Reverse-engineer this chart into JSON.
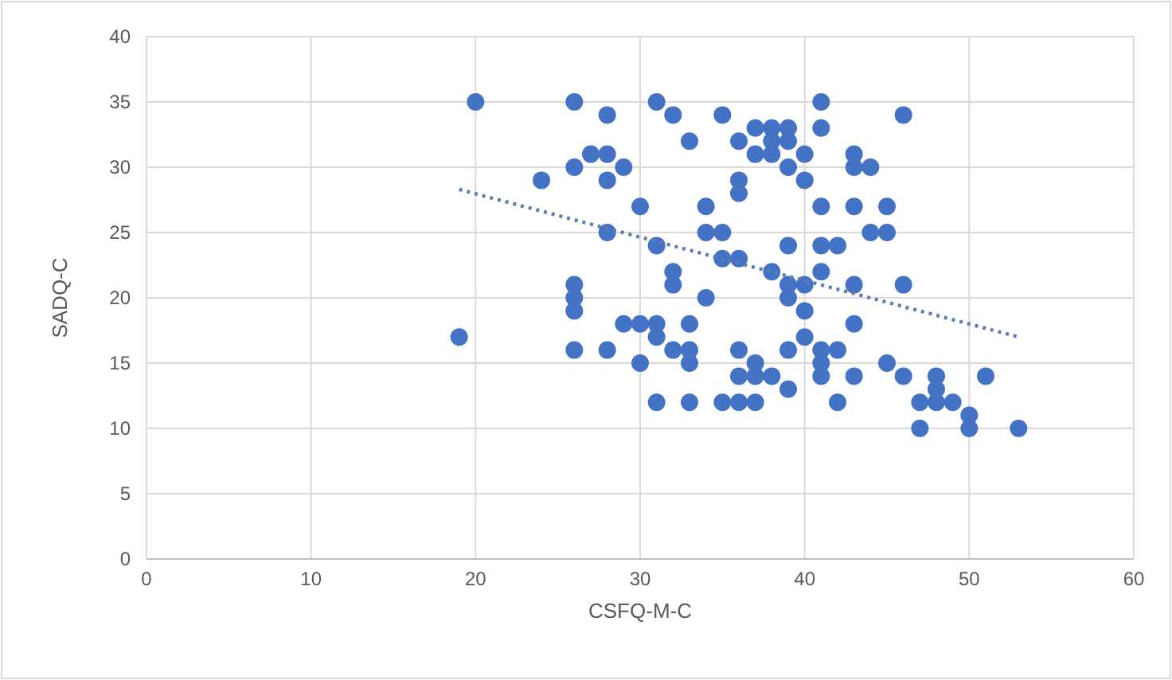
{
  "chart_data": {
    "type": "scatter",
    "xlabel": "CSFQ-M-C",
    "ylabel": "SADQ-C",
    "xlim": [
      0,
      60
    ],
    "xticks": [
      0,
      10,
      20,
      30,
      40,
      50,
      60
    ],
    "ylim": [
      0,
      40
    ],
    "yticks": [
      0,
      5,
      10,
      15,
      20,
      25,
      30,
      35,
      40
    ],
    "grid": true,
    "marker": "circle",
    "series": [
      {
        "type": "scatter",
        "color": "#4472c4",
        "x": [
          19,
          20,
          24,
          26,
          26,
          26,
          26,
          26,
          26,
          27,
          28,
          28,
          28,
          28,
          28,
          29,
          29,
          30,
          30,
          30,
          31,
          31,
          31,
          31,
          31,
          32,
          32,
          32,
          32,
          33,
          33,
          33,
          33,
          33,
          34,
          34,
          34,
          35,
          35,
          35,
          35,
          36,
          36,
          36,
          36,
          36,
          36,
          36,
          37,
          37,
          37,
          37,
          37,
          38,
          38,
          38,
          38,
          38,
          39,
          39,
          39,
          39,
          39,
          39,
          39,
          39,
          40,
          40,
          40,
          40,
          40,
          41,
          41,
          41,
          41,
          41,
          41,
          41,
          41,
          42,
          42,
          42,
          43,
          43,
          43,
          43,
          43,
          43,
          44,
          44,
          45,
          45,
          45,
          46,
          46,
          46,
          47,
          47,
          48,
          48,
          48,
          49,
          50,
          50,
          51,
          53
        ],
        "values": [
          17,
          35,
          29,
          35,
          30,
          21,
          20,
          19,
          16,
          31,
          31,
          34,
          29,
          25,
          16,
          30,
          18,
          27,
          18,
          15,
          35,
          24,
          18,
          17,
          12,
          34,
          22,
          21,
          16,
          32,
          18,
          16,
          15,
          12,
          27,
          25,
          20,
          34,
          25,
          23,
          12,
          32,
          29,
          28,
          23,
          16,
          14,
          12,
          33,
          31,
          15,
          14,
          12,
          33,
          32,
          31,
          22,
          14,
          33,
          32,
          30,
          24,
          21,
          20,
          16,
          13,
          31,
          29,
          21,
          19,
          17,
          35,
          33,
          27,
          24,
          22,
          16,
          15,
          14,
          24,
          16,
          12,
          31,
          30,
          27,
          21,
          18,
          14,
          30,
          25,
          27,
          25,
          15,
          34,
          21,
          14,
          12,
          10,
          14,
          13,
          12,
          12,
          11,
          10,
          14,
          10
        ]
      },
      {
        "type": "line",
        "color": "#5b7fb5",
        "line_style": "dotted",
        "marker": "none",
        "x": [
          19,
          53
        ],
        "values": [
          28.3,
          17
        ]
      }
    ]
  }
}
